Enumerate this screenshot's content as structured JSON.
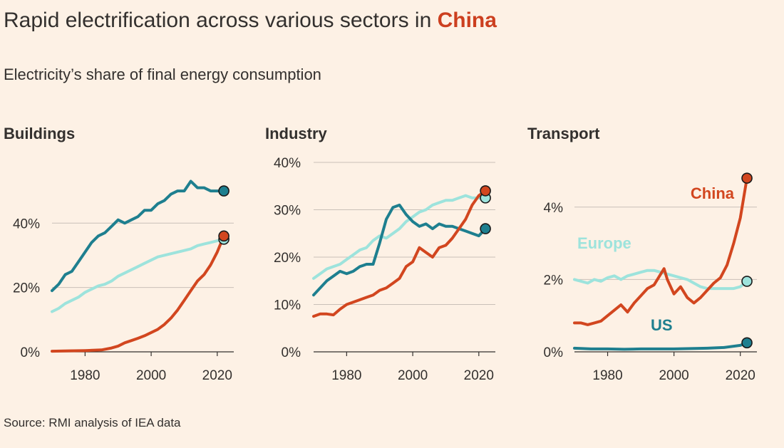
{
  "title_pre": "Rapid electrification across various sectors in ",
  "title_highlight": "China",
  "subtitle": "Electricity’s share of final energy consumption",
  "source": "Source: RMI analysis of IEA data",
  "colors": {
    "China": "#d2461f",
    "Europe": "#9de3dc",
    "US": "#1e7f8f"
  },
  "chart_data": [
    {
      "type": "line",
      "title": "Buildings",
      "xlim": [
        1970,
        2025
      ],
      "ylim": [
        0,
        54
      ],
      "xticks": [
        1980,
        2000,
        2020
      ],
      "xtick_labels": [
        "1980",
        "2000",
        "2020"
      ],
      "yticks": [
        0,
        20,
        40
      ],
      "ytick_labels": [
        "0%",
        "20%",
        "40%"
      ],
      "inline_labels": [],
      "series": [
        {
          "name": "US",
          "x": [
            1970,
            1972,
            1974,
            1976,
            1978,
            1980,
            1982,
            1984,
            1986,
            1988,
            1990,
            1992,
            1994,
            1996,
            1998,
            2000,
            2002,
            2004,
            2006,
            2008,
            2010,
            2012,
            2014,
            2016,
            2018,
            2020,
            2022
          ],
          "values": [
            19,
            21,
            24,
            25,
            28,
            31,
            34,
            36,
            37,
            39,
            41,
            40,
            41,
            42,
            44,
            44,
            46,
            47,
            49,
            50,
            50,
            53,
            51,
            51,
            50,
            50,
            50
          ]
        },
        {
          "name": "Europe",
          "x": [
            1970,
            1972,
            1974,
            1976,
            1978,
            1980,
            1982,
            1984,
            1986,
            1988,
            1990,
            1992,
            1994,
            1996,
            1998,
            2000,
            2002,
            2004,
            2006,
            2008,
            2010,
            2012,
            2014,
            2016,
            2018,
            2020,
            2022
          ],
          "values": [
            12.5,
            13.5,
            15,
            16,
            17,
            18.5,
            19.5,
            20.5,
            21,
            22,
            23.5,
            24.5,
            25.5,
            26.5,
            27.5,
            28.5,
            29.5,
            30,
            30.5,
            31,
            31.5,
            32,
            33,
            33.5,
            34,
            34.5,
            35
          ]
        },
        {
          "name": "China",
          "x": [
            1970,
            1975,
            1980,
            1985,
            1988,
            1990,
            1992,
            1994,
            1996,
            1998,
            2000,
            2002,
            2004,
            2006,
            2008,
            2010,
            2012,
            2014,
            2016,
            2018,
            2020,
            2022
          ],
          "values": [
            0.2,
            0.3,
            0.4,
            0.6,
            1.2,
            1.8,
            2.8,
            3.5,
            4.2,
            5,
            6,
            7,
            8.5,
            10.5,
            13,
            16,
            19,
            22,
            24,
            27,
            31,
            36
          ]
        }
      ]
    },
    {
      "type": "line",
      "title": "Industry",
      "xlim": [
        1970,
        2025
      ],
      "ylim": [
        0,
        40
      ],
      "xticks": [
        1980,
        2000,
        2020
      ],
      "xtick_labels": [
        "1980",
        "2000",
        "2020"
      ],
      "yticks": [
        0,
        10,
        20,
        30,
        40
      ],
      "ytick_labels": [
        "0%",
        "10%",
        "20%",
        "30%",
        "40%"
      ],
      "inline_labels": [],
      "series": [
        {
          "name": "Europe",
          "x": [
            1970,
            1972,
            1974,
            1976,
            1978,
            1980,
            1982,
            1984,
            1986,
            1988,
            1990,
            1992,
            1994,
            1996,
            1998,
            2000,
            2002,
            2004,
            2006,
            2008,
            2010,
            2012,
            2014,
            2016,
            2018,
            2020,
            2022
          ],
          "values": [
            15.5,
            16.5,
            17.5,
            18,
            18.5,
            19.5,
            20.5,
            21.5,
            22,
            23.5,
            24.5,
            24,
            25,
            26,
            27.5,
            28.5,
            29.5,
            30,
            31,
            31.5,
            32,
            32,
            32.5,
            33,
            32.5,
            32.5,
            32.5
          ]
        },
        {
          "name": "US",
          "x": [
            1970,
            1972,
            1974,
            1976,
            1978,
            1980,
            1982,
            1984,
            1986,
            1988,
            1990,
            1992,
            1994,
            1996,
            1998,
            2000,
            2002,
            2004,
            2006,
            2008,
            2010,
            2012,
            2014,
            2016,
            2018,
            2020,
            2022
          ],
          "values": [
            12,
            13.5,
            15,
            16,
            17,
            16.5,
            17,
            18,
            18.5,
            18.5,
            23,
            28,
            30.5,
            31,
            29,
            27.5,
            26.5,
            27,
            26,
            27,
            26.5,
            26.5,
            26,
            25.5,
            25,
            24.5,
            26
          ]
        },
        {
          "name": "China",
          "x": [
            1970,
            1972,
            1974,
            1976,
            1978,
            1980,
            1982,
            1984,
            1986,
            1988,
            1990,
            1992,
            1994,
            1996,
            1998,
            2000,
            2002,
            2004,
            2006,
            2008,
            2010,
            2012,
            2014,
            2016,
            2018,
            2020,
            2022
          ],
          "values": [
            7.5,
            8,
            8,
            7.8,
            9,
            10,
            10.5,
            11,
            11.5,
            12,
            13,
            13.5,
            14.5,
            15.5,
            18,
            19,
            22,
            21,
            20,
            22,
            22.5,
            24,
            26,
            28,
            31,
            33,
            34
          ]
        }
      ]
    },
    {
      "type": "line",
      "title": "Transport",
      "xlim": [
        1970,
        2025
      ],
      "ylim": [
        0,
        5
      ],
      "xticks": [
        1980,
        2000,
        2020
      ],
      "xtick_labels": [
        "1980",
        "2000",
        "2020"
      ],
      "yticks": [
        0,
        2,
        4
      ],
      "ytick_labels": [
        "0%",
        "2%",
        "4%"
      ],
      "inline_labels": [
        "Europe",
        "China",
        "US"
      ],
      "series": [
        {
          "name": "Europe",
          "x": [
            1970,
            1972,
            1974,
            1976,
            1978,
            1980,
            1982,
            1984,
            1986,
            1988,
            1990,
            1992,
            1994,
            1996,
            1998,
            2000,
            2002,
            2004,
            2006,
            2008,
            2010,
            2012,
            2014,
            2016,
            2018,
            2020,
            2022
          ],
          "values": [
            2.0,
            1.95,
            1.9,
            2.0,
            1.95,
            2.05,
            2.1,
            2.0,
            2.1,
            2.15,
            2.2,
            2.25,
            2.25,
            2.2,
            2.15,
            2.1,
            2.05,
            2.0,
            1.9,
            1.8,
            1.75,
            1.75,
            1.75,
            1.75,
            1.75,
            1.8,
            1.95
          ]
        },
        {
          "name": "China",
          "x": [
            1970,
            1972,
            1974,
            1976,
            1978,
            1980,
            1982,
            1984,
            1986,
            1988,
            1990,
            1992,
            1994,
            1996,
            1997,
            1998,
            2000,
            2002,
            2004,
            2006,
            2008,
            2010,
            2012,
            2014,
            2016,
            2018,
            2020,
            2022
          ],
          "values": [
            0.8,
            0.8,
            0.75,
            0.8,
            0.85,
            1.0,
            1.15,
            1.3,
            1.1,
            1.35,
            1.55,
            1.75,
            1.85,
            2.15,
            2.3,
            2.0,
            1.6,
            1.8,
            1.5,
            1.35,
            1.5,
            1.7,
            1.9,
            2.05,
            2.4,
            3.0,
            3.7,
            4.8
          ]
        },
        {
          "name": "US",
          "x": [
            1970,
            1975,
            1980,
            1985,
            1990,
            1995,
            2000,
            2005,
            2010,
            2015,
            2020,
            2022
          ],
          "values": [
            0.1,
            0.08,
            0.08,
            0.07,
            0.08,
            0.08,
            0.08,
            0.09,
            0.1,
            0.12,
            0.18,
            0.25
          ]
        }
      ]
    }
  ]
}
